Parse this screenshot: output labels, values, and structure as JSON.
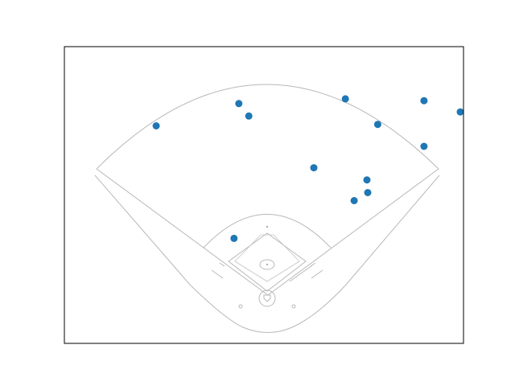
{
  "chart_data": {
    "type": "scatter",
    "title": "",
    "xlabel": "",
    "ylabel": "",
    "xlim": [
      0,
      100
    ],
    "ylim": [
      0,
      100
    ],
    "x_ticks_visible": false,
    "y_ticks_visible": false,
    "grid": false,
    "background": "baseball-field-diagram",
    "series": [
      {
        "marker_color": "#1f77b4",
        "points": [
          {
            "x": 23.0,
            "y": 73.3
          },
          {
            "x": 43.7,
            "y": 80.8
          },
          {
            "x": 46.2,
            "y": 76.6
          },
          {
            "x": 70.4,
            "y": 82.4
          },
          {
            "x": 78.5,
            "y": 73.8
          },
          {
            "x": 90.1,
            "y": 81.8
          },
          {
            "x": 99.2,
            "y": 78.0
          },
          {
            "x": 90.1,
            "y": 66.4
          },
          {
            "x": 62.5,
            "y": 59.2
          },
          {
            "x": 75.8,
            "y": 55.1
          },
          {
            "x": 76.0,
            "y": 50.8
          },
          {
            "x": 72.6,
            "y": 48.1
          },
          {
            "x": 42.5,
            "y": 35.4
          }
        ]
      }
    ]
  }
}
